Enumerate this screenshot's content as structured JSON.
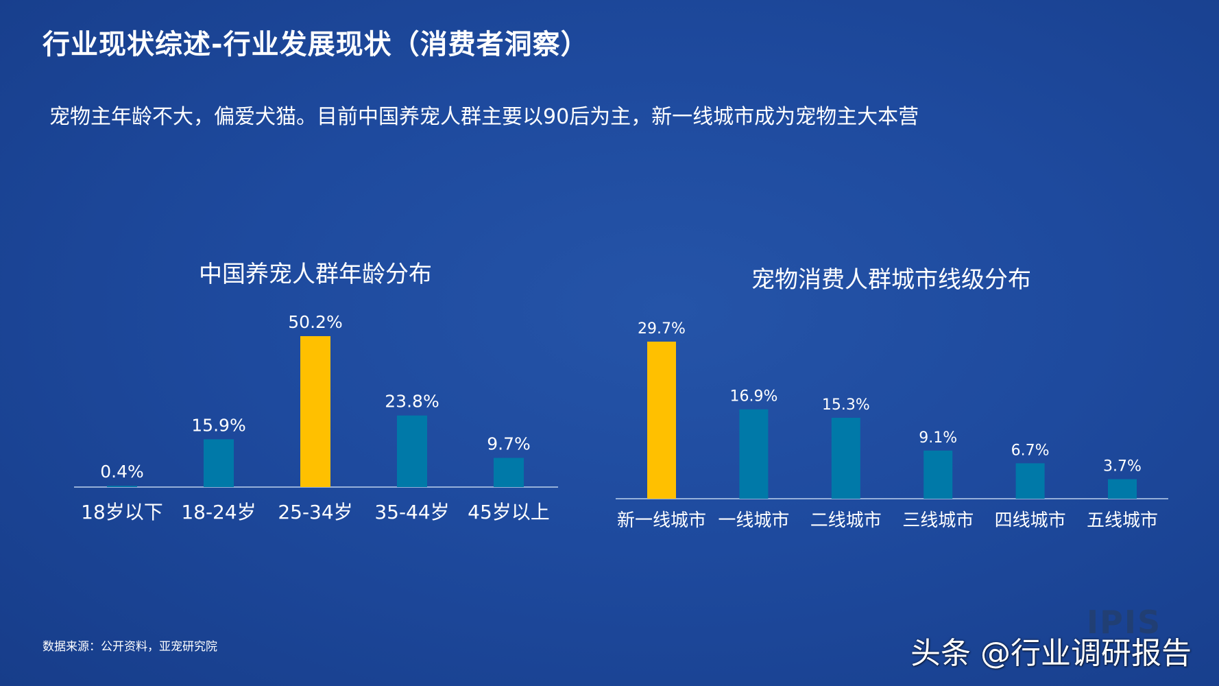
{
  "header": {
    "title": "行业现状综述-行业发展现状（消费者洞察）",
    "subtitle": "宠物主年龄不大，偏爱犬猫。目前中国养宠人群主要以90后为主，新一线城市成为宠物主大本营"
  },
  "colors": {
    "highlight": "#FFC000",
    "bar": "#0079A8",
    "axis": "#BFD3EE"
  },
  "chart_data": [
    {
      "type": "bar",
      "title": "中国养宠人群年龄分布",
      "categories": [
        "18岁以下",
        "18-24岁",
        "25-34岁",
        "35-44岁",
        "45岁以上"
      ],
      "values": [
        0.4,
        15.9,
        50.2,
        23.8,
        9.7
      ],
      "labels": [
        "0.4%",
        "15.9%",
        "50.2%",
        "23.8%",
        "9.7%"
      ],
      "highlight_index": 2,
      "ylim": [
        0,
        50.2
      ],
      "grid": false,
      "legend": "none"
    },
    {
      "type": "bar",
      "title": "宠物消费人群城市线级分布",
      "categories": [
        "新一线城市",
        "一线城市",
        "二线城市",
        "三线城市",
        "四线城市",
        "五线城市"
      ],
      "values": [
        29.7,
        16.9,
        15.3,
        9.1,
        6.7,
        3.7
      ],
      "labels": [
        "29.7%",
        "16.9%",
        "15.3%",
        "9.1%",
        "6.7%",
        "3.7%"
      ],
      "highlight_index": 0,
      "ylim": [
        0,
        29.7
      ],
      "grid": false,
      "legend": "none"
    }
  ],
  "footer": {
    "source": "数据来源：公开资料，亚宠研究院",
    "watermark": "头条 @行业调研报告",
    "logo_text": "IPIS"
  }
}
